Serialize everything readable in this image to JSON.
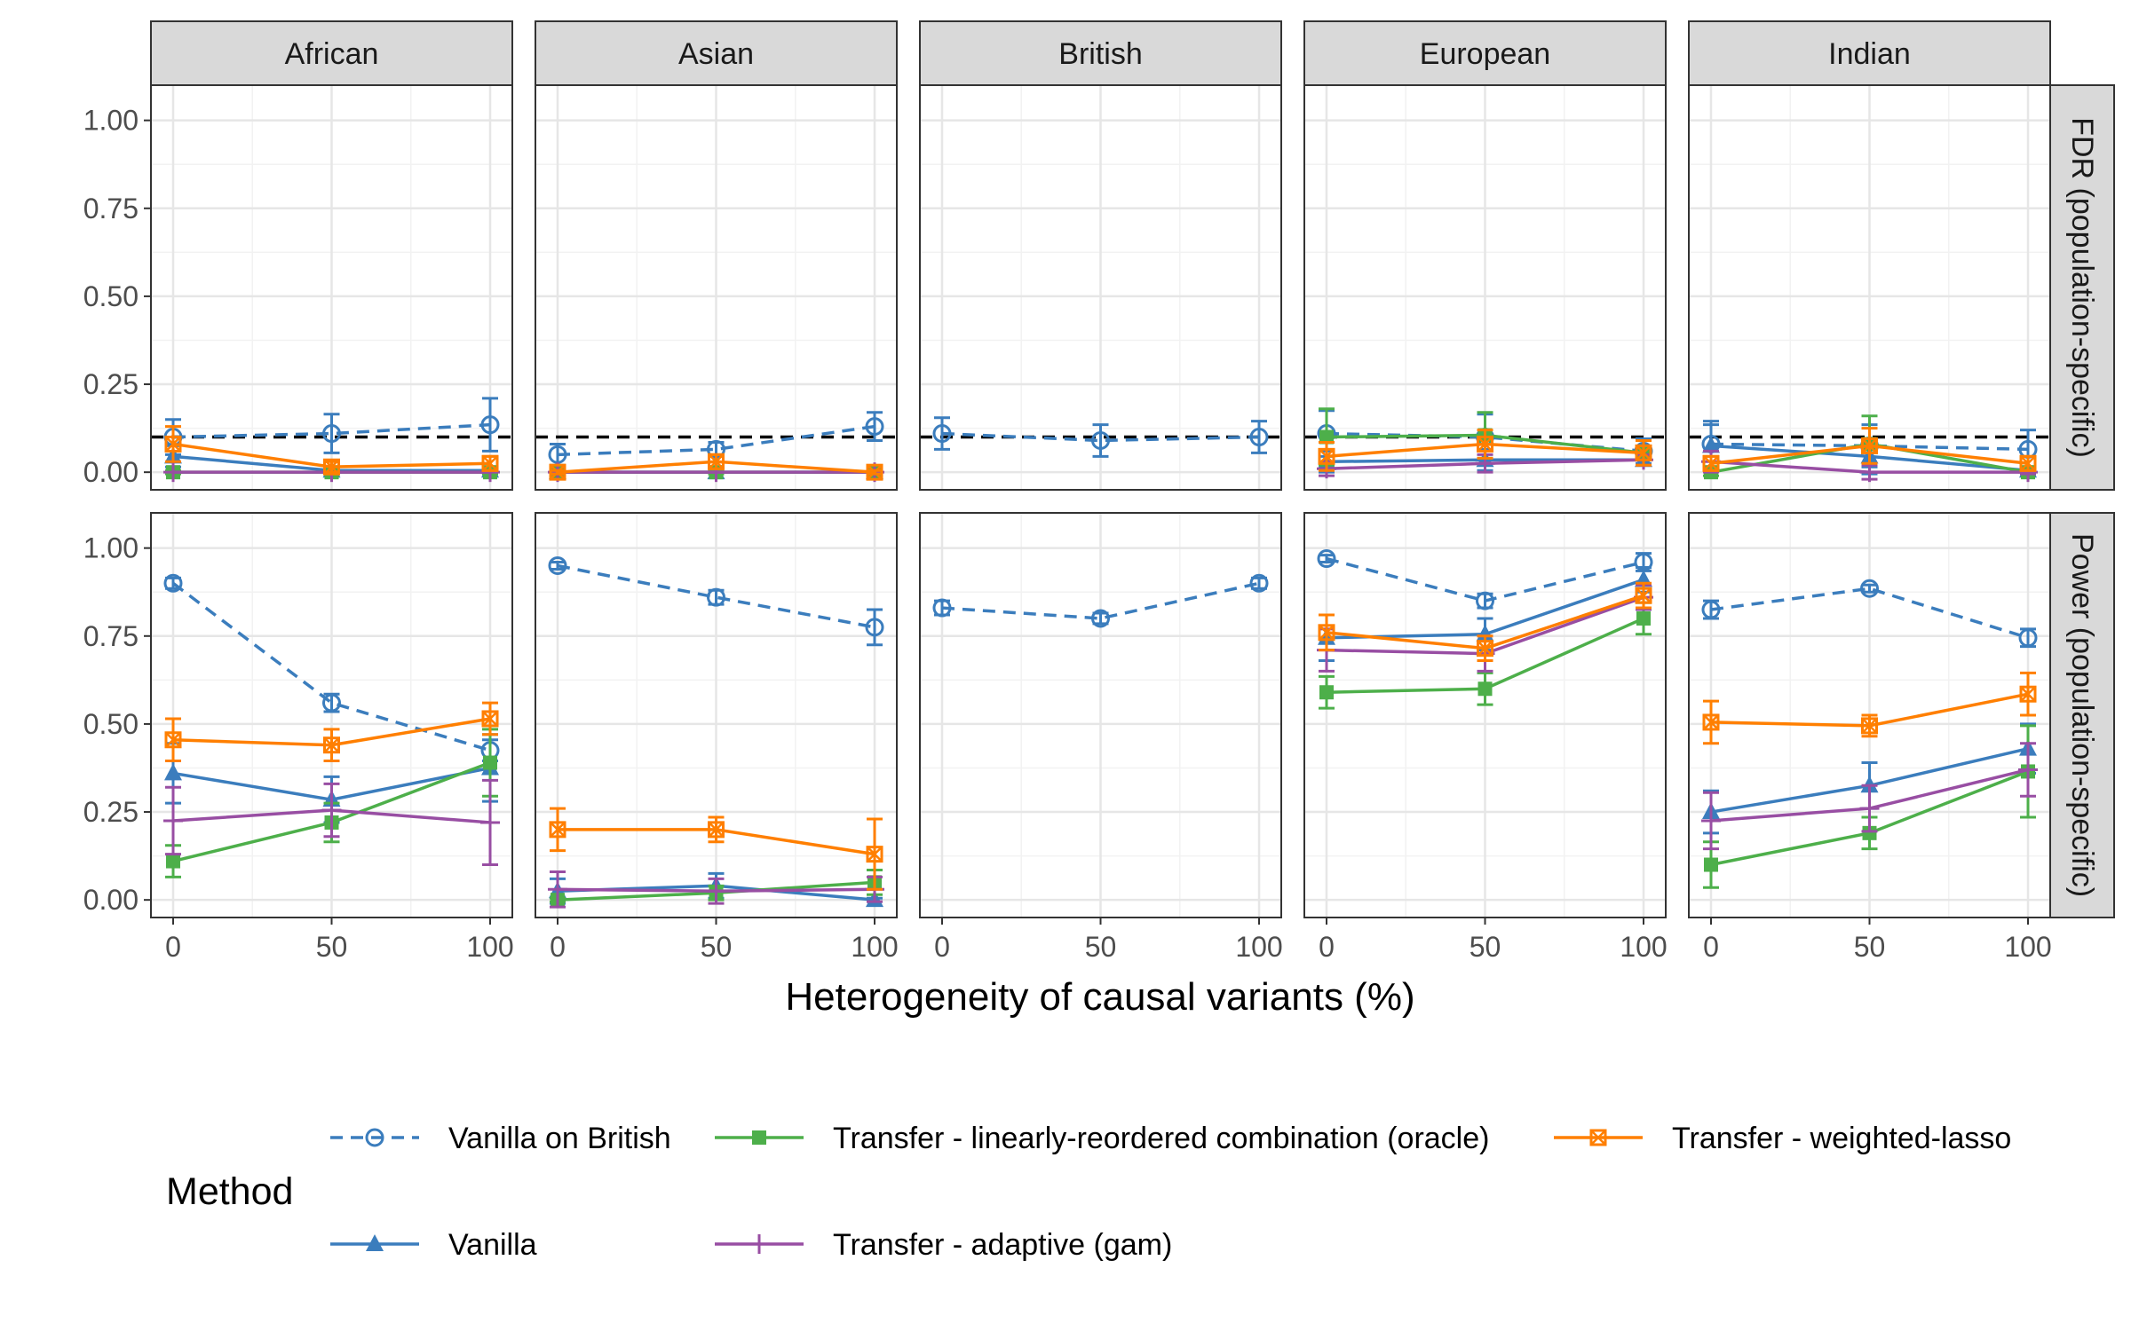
{
  "chart_data": {
    "type": "line",
    "title": "",
    "xlabel": "Heterogeneity of causal variants (%)",
    "x": [
      0,
      50,
      100
    ],
    "xticks": [
      "0",
      "50",
      "100"
    ],
    "xlim": [
      -7,
      107
    ],
    "ylim": [
      -0.05,
      1.1
    ],
    "yticks": [
      "0.00",
      "0.25",
      "0.50",
      "0.75",
      "1.00"
    ],
    "ytick_values": [
      0,
      0.25,
      0.5,
      0.75,
      1.0
    ],
    "columns": [
      "African",
      "Asian",
      "British",
      "European",
      "Indian"
    ],
    "rows": [
      "FDR (population-specific)",
      "Power (population-specific)"
    ],
    "fdr_target": 0.1,
    "legend": {
      "title": "Method",
      "position": "bottom"
    },
    "methods": [
      {
        "key": "vb",
        "name": "Vanilla on British",
        "color": "#3b7dbd",
        "shape": "circle-open",
        "dashed": true
      },
      {
        "key": "va",
        "name": "Vanilla",
        "color": "#3b7dbd",
        "shape": "triangle",
        "dashed": false
      },
      {
        "key": "lr",
        "name": "Transfer - linearly-reordered combination (oracle)",
        "color": "#4daf4a",
        "shape": "square",
        "dashed": false
      },
      {
        "key": "ad",
        "name": "Transfer - adaptive (gam)",
        "color": "#984ea3",
        "shape": "plus",
        "dashed": false
      },
      {
        "key": "wl",
        "name": "Transfer - weighted-lasso",
        "color": "#ff7f00",
        "shape": "square-cross",
        "dashed": false
      }
    ],
    "series": {
      "FDR": {
        "African": {
          "vb": {
            "values": [
              0.1,
              0.11,
              0.135
            ],
            "err": [
              0.05,
              0.055,
              0.075
            ]
          },
          "va": {
            "values": [
              0.045,
              0.005,
              0.005
            ],
            "err": [
              0.03,
              0.01,
              0.01
            ]
          },
          "lr": {
            "values": [
              0.0,
              0.0,
              0.0
            ],
            "err": [
              0.005,
              0.005,
              0.005
            ]
          },
          "ad": {
            "values": [
              0.0,
              0.0,
              0.0
            ],
            "err": [
              0.0,
              0.0,
              0.0
            ]
          },
          "wl": {
            "values": [
              0.08,
              0.015,
              0.025
            ],
            "err": [
              0.05,
              0.015,
              0.02
            ]
          }
        },
        "Asian": {
          "vb": {
            "values": [
              0.05,
              0.065,
              0.13
            ],
            "err": [
              0.03,
              0.02,
              0.04
            ]
          },
          "va": {
            "values": [
              0.0,
              0.0,
              0.0
            ],
            "err": [
              0.005,
              0.005,
              0.005
            ]
          },
          "lr": {
            "values": [
              0.0,
              0.0,
              0.0
            ],
            "err": [
              0.005,
              0.005,
              0.005
            ]
          },
          "ad": {
            "values": [
              0.0,
              0.0,
              0.0
            ],
            "err": [
              0.0,
              0.0,
              0.0
            ]
          },
          "wl": {
            "values": [
              0.0,
              0.03,
              0.0
            ],
            "err": [
              0.005,
              0.02,
              0.005
            ]
          }
        },
        "British": {
          "vb": {
            "values": [
              0.11,
              0.09,
              0.1
            ],
            "err": [
              0.045,
              0.045,
              0.045
            ]
          }
        },
        "European": {
          "vb": {
            "values": [
              0.11,
              0.1,
              0.06
            ],
            "err": [
              0.065,
              0.065,
              0.035
            ]
          },
          "va": {
            "values": [
              0.03,
              0.035,
              0.035
            ],
            "err": [
              0.03,
              0.03,
              0.015
            ]
          },
          "lr": {
            "values": [
              0.1,
              0.105,
              0.055
            ],
            "err": [
              0.08,
              0.065,
              0.035
            ]
          },
          "ad": {
            "values": [
              0.01,
              0.025,
              0.035
            ],
            "err": [
              0.02,
              0.025,
              0.015
            ]
          },
          "wl": {
            "values": [
              0.045,
              0.08,
              0.055
            ],
            "err": [
              0.04,
              0.04,
              0.035
            ]
          }
        },
        "Indian": {
          "vb": {
            "values": [
              0.08,
              0.075,
              0.065
            ],
            "err": [
              0.065,
              0.06,
              0.055
            ]
          },
          "va": {
            "values": [
              0.075,
              0.045,
              0.005
            ],
            "err": [
              0.06,
              0.05,
              0.01
            ]
          },
          "lr": {
            "values": [
              0.0,
              0.08,
              0.0
            ],
            "err": [
              0.01,
              0.08,
              0.005
            ]
          },
          "ad": {
            "values": [
              0.03,
              0.0,
              0.0
            ],
            "err": [
              0.03,
              0.02,
              0.005
            ]
          },
          "wl": {
            "values": [
              0.025,
              0.075,
              0.025
            ],
            "err": [
              0.02,
              0.05,
              0.02
            ]
          }
        }
      },
      "Power": {
        "African": {
          "vb": {
            "values": [
              0.9,
              0.56,
              0.425
            ],
            "err": [
              0.015,
              0.025,
              0.03
            ]
          },
          "va": {
            "values": [
              0.36,
              0.285,
              0.375
            ],
            "err": [
              0.085,
              0.065,
              0.095
            ]
          },
          "lr": {
            "values": [
              0.11,
              0.22,
              0.39
            ],
            "err": [
              0.045,
              0.055,
              0.095
            ]
          },
          "ad": {
            "values": [
              0.225,
              0.255,
              0.22
            ],
            "err": [
              0.095,
              0.075,
              0.12
            ]
          },
          "wl": {
            "values": [
              0.455,
              0.44,
              0.515
            ],
            "err": [
              0.06,
              0.045,
              0.045
            ]
          }
        },
        "Asian": {
          "vb": {
            "values": [
              0.95,
              0.86,
              0.775
            ],
            "err": [
              0.01,
              0.02,
              0.05
            ]
          },
          "va": {
            "values": [
              0.025,
              0.04,
              0.0
            ],
            "err": [
              0.035,
              0.035,
              0.005
            ]
          },
          "lr": {
            "values": [
              0.0,
              0.02,
              0.05
            ],
            "err": [
              0.005,
              0.02,
              0.035
            ]
          },
          "ad": {
            "values": [
              0.03,
              0.025,
              0.03
            ],
            "err": [
              0.05,
              0.035,
              0.035
            ]
          },
          "wl": {
            "values": [
              0.2,
              0.2,
              0.13
            ],
            "err": [
              0.06,
              0.035,
              0.1
            ]
          }
        },
        "British": {
          "vb": {
            "values": [
              0.83,
              0.8,
              0.9
            ],
            "err": [
              0.02,
              0.015,
              0.015
            ]
          }
        },
        "European": {
          "vb": {
            "values": [
              0.97,
              0.85,
              0.96
            ],
            "err": [
              0.01,
              0.02,
              0.025
            ]
          },
          "va": {
            "values": [
              0.745,
              0.755,
              0.91
            ],
            "err": [
              0.065,
              0.045,
              0.035
            ]
          },
          "lr": {
            "values": [
              0.59,
              0.6,
              0.8
            ],
            "err": [
              0.045,
              0.045,
              0.045
            ]
          },
          "ad": {
            "values": [
              0.71,
              0.7,
              0.86
            ],
            "err": [
              0.06,
              0.05,
              0.035
            ]
          },
          "wl": {
            "values": [
              0.76,
              0.715,
              0.865
            ],
            "err": [
              0.05,
              0.035,
              0.035
            ]
          }
        },
        "Indian": {
          "vb": {
            "values": [
              0.825,
              0.885,
              0.745
            ],
            "err": [
              0.025,
              0.01,
              0.025
            ]
          },
          "va": {
            "values": [
              0.25,
              0.325,
              0.43
            ],
            "err": [
              0.06,
              0.065,
              0.07
            ]
          },
          "lr": {
            "values": [
              0.1,
              0.19,
              0.365
            ],
            "err": [
              0.065,
              0.045,
              0.13
            ]
          },
          "ad": {
            "values": [
              0.225,
              0.26,
              0.37
            ],
            "err": [
              0.08,
              0.065,
              0.075
            ]
          },
          "wl": {
            "values": [
              0.505,
              0.495,
              0.585
            ],
            "err": [
              0.06,
              0.03,
              0.06
            ]
          }
        }
      }
    }
  }
}
